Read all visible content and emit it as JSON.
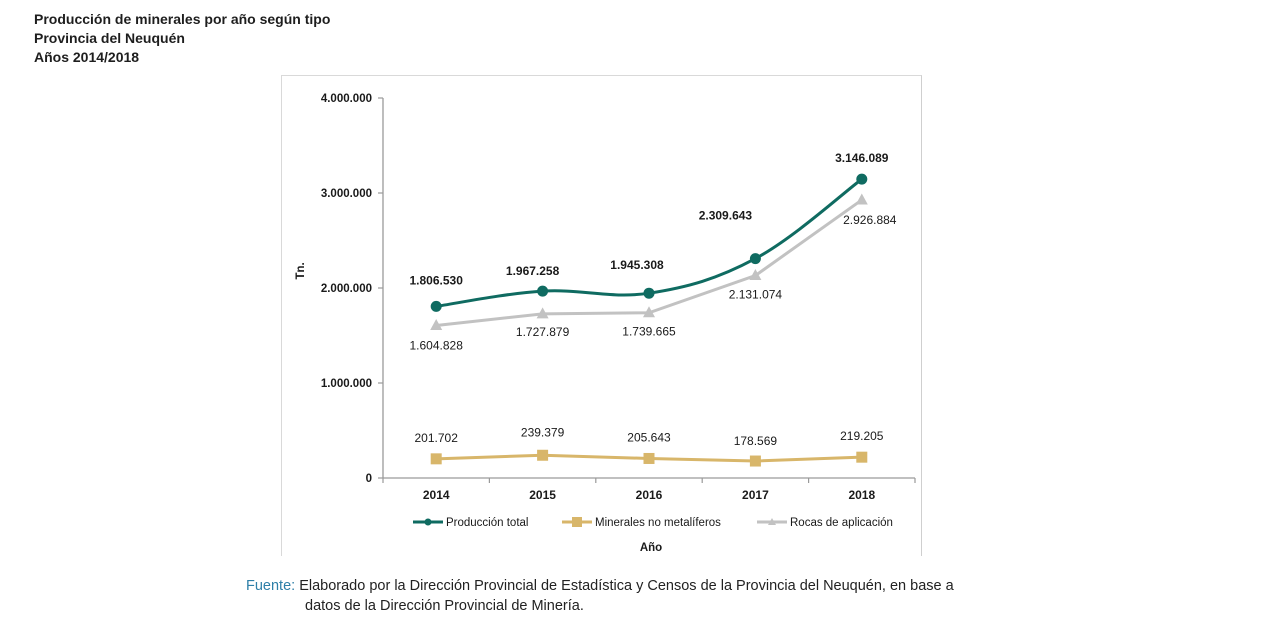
{
  "header": {
    "title_line1": "Producción de minerales por año según tipo",
    "title_line2": "Provincia del Neuquén",
    "title_line3": "Años 2014/2018"
  },
  "source": {
    "label": "Fuente:",
    "text_line1": "Elaborado por la Dirección Provincial de Estadística y Censos de la Provincia del Neuquén, en base a",
    "text_line2": "datos de la Dirección Provincial de Minería."
  },
  "chart_data": {
    "type": "line",
    "title": "Producción de minerales por año según tipo",
    "xlabel": "Año",
    "ylabel": "Tn.",
    "categories": [
      "2014",
      "2015",
      "2016",
      "2017",
      "2018"
    ],
    "ylim": [
      0,
      4000000
    ],
    "yticks": [
      0,
      1000000,
      2000000,
      3000000,
      4000000
    ],
    "ytick_labels": [
      "0",
      "1.000.000",
      "2.000.000",
      "3.000.000",
      "4.000.000"
    ],
    "grid": false,
    "legend_position": "bottom",
    "series": [
      {
        "name": "Producción total",
        "values": [
          1806530,
          1967258,
          1945308,
          2309643,
          3146089
        ],
        "labels": [
          "1.806.530",
          "1.967.258",
          "1.945.308",
          "2.309.643",
          "3.146.089"
        ],
        "color": "#0f6b61",
        "marker": "circle",
        "smooth": true,
        "label_bold": true
      },
      {
        "name": "Minerales no metalíferos",
        "values": [
          201702,
          239379,
          205643,
          178569,
          219205
        ],
        "labels": [
          "201.702",
          "239.379",
          "205.643",
          "178.569",
          "219.205"
        ],
        "color": "#d8b66a",
        "marker": "square",
        "smooth": false,
        "label_bold": false
      },
      {
        "name": "Rocas de aplicación",
        "values": [
          1604828,
          1727879,
          1739665,
          2131074,
          2926884
        ],
        "labels": [
          "1.604.828",
          "1.727.879",
          "1.739.665",
          "2.131.074",
          "2.926.884"
        ],
        "color": "#c2c2c2",
        "marker": "triangle",
        "smooth": false,
        "label_bold": false
      }
    ]
  }
}
